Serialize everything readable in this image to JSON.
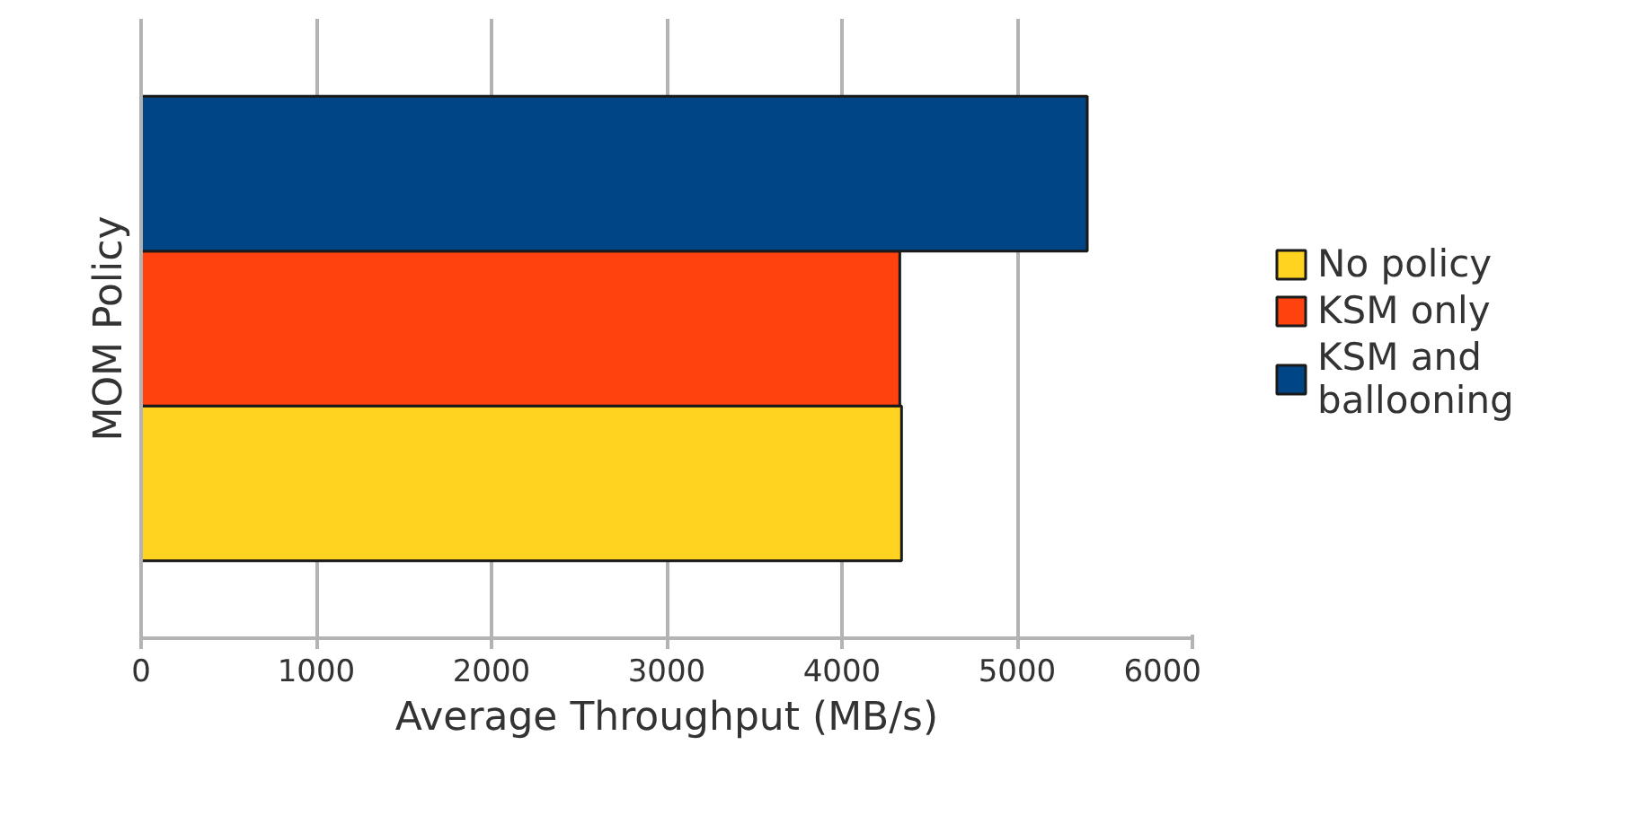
{
  "chart_data": {
    "type": "bar",
    "orientation": "horizontal",
    "xlabel": "Average Throughput (MB/s)",
    "ylabel": "MOM Policy",
    "categories": [
      null
    ],
    "series": [
      {
        "name": "No policy",
        "color": "#ffd320",
        "values": [
          4340
        ]
      },
      {
        "name": "KSM only",
        "color": "#ff420e",
        "values": [
          4330
        ]
      },
      {
        "name": "KSM and ballooning",
        "color": "#004586",
        "values": [
          5400
        ]
      }
    ],
    "xlim": [
      0,
      6000
    ],
    "xticks": [
      0,
      1000,
      2000,
      3000,
      4000,
      5000,
      6000
    ],
    "grid": "x",
    "legend": "right"
  }
}
